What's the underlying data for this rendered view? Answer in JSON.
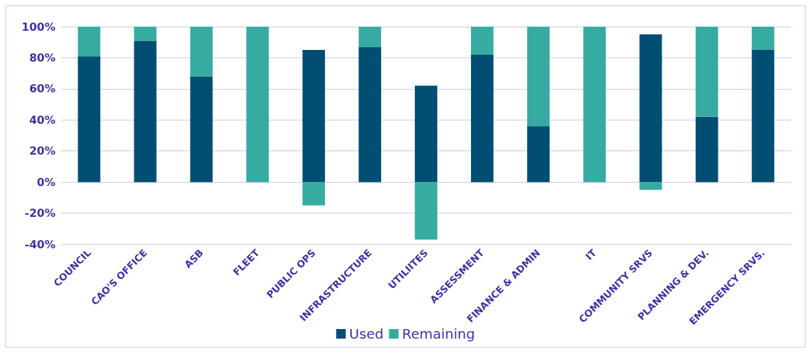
{
  "chart_data": {
    "type": "bar",
    "stacked": true,
    "categories": [
      "COUNCIL",
      "CAO'S OFFICE",
      "ASB",
      "FLEET",
      "PUBLIC OPS",
      "INFRASTRUCTURE",
      "UTILIITES",
      "ASSESSMENT",
      "FINANCE & ADMIN",
      "IT",
      "COMMUNITY SRVS",
      "PLANNING & DEV.",
      "EMERGENCY SRVS."
    ],
    "series": [
      {
        "name": "Used",
        "color": "#004e73",
        "values": [
          81,
          91,
          68,
          0,
          85,
          87,
          62,
          82,
          36,
          0,
          95,
          42,
          85
        ]
      },
      {
        "name": "Remaining",
        "color": "#36aba2",
        "values": [
          19,
          9,
          32,
          100,
          -15,
          13,
          -37,
          18,
          64,
          100,
          -5,
          58,
          15
        ]
      }
    ],
    "ylim": [
      -40,
      100
    ],
    "yticks": [
      {
        "value": -40,
        "label": "-40%"
      },
      {
        "value": -20,
        "label": "-20%"
      },
      {
        "value": 0,
        "label": "0%"
      },
      {
        "value": 20,
        "label": "20%"
      },
      {
        "value": 40,
        "label": "40%"
      },
      {
        "value": 60,
        "label": "60%"
      },
      {
        "value": 80,
        "label": "80%"
      },
      {
        "value": 100,
        "label": "100%"
      }
    ],
    "grid": "y",
    "legend": "bottom"
  }
}
